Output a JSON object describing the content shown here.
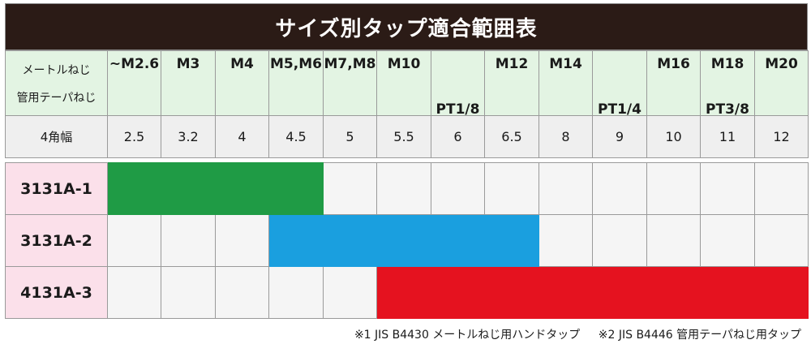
{
  "title": "サイズ別タップ適合範囲表",
  "header": {
    "label_line1": "メートルねじ",
    "label_line2": "管用テーパねじ",
    "metric": [
      "~M2.6",
      "M3",
      "M4",
      "M5,M6",
      "M7,M8",
      "M10",
      "",
      "M12",
      "M14",
      "",
      "M16",
      "M18",
      "M20"
    ],
    "pipe": [
      "",
      "",
      "",
      "",
      "",
      "",
      "PT1/8",
      "",
      "",
      "PT1/4",
      "",
      "PT3/8",
      ""
    ]
  },
  "width_row": {
    "label": "4角幅",
    "values": [
      "2.5",
      "3.2",
      "4",
      "4.5",
      "5",
      "5.5",
      "6",
      "6.5",
      "8",
      "9",
      "10",
      "11",
      "12"
    ]
  },
  "products": [
    {
      "name": "3131A-1",
      "color": "#1f9b45",
      "range": [
        0,
        3
      ]
    },
    {
      "name": "3131A-2",
      "color": "#1a9fdf",
      "range": [
        3,
        7
      ]
    },
    {
      "name": "4131A-3",
      "color": "#e5121f",
      "range": [
        5,
        12
      ]
    }
  ],
  "footnotes": [
    "※1 JIS B4430 メートルねじ用ハンドタップ",
    "※2 JIS B4446 管用テーパねじ用タップ"
  ]
}
